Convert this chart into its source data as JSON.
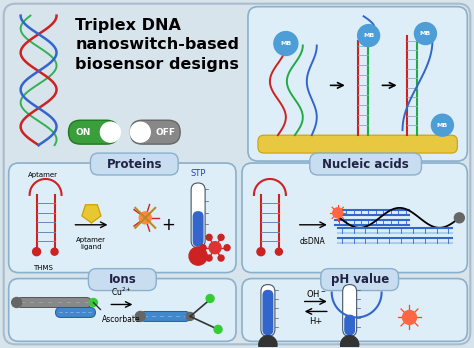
{
  "title": "Triplex DNA\nnanoswitch-based\nbiosensor designs",
  "bg_color": "#d8e4ec",
  "panel_bg": "#ddeef8",
  "panel_border": "#8ab0cc",
  "title_fontsize": 11.5,
  "sections": {
    "proteins": "Proteins",
    "nucleic": "Nucleic acids",
    "ions": "Ions",
    "ph": "pH value"
  },
  "on_color": "#3a9e3a",
  "off_color": "#888888",
  "mb_color": "#4d9dd6",
  "red_dot": "#cc2222",
  "green_dot": "#33cc33",
  "gray_dot": "#555555",
  "blue_strand": "#3366cc",
  "red_strand": "#cc2222",
  "green_strand": "#22aa44",
  "gold_color": "#e8c840",
  "label_color": "#222244"
}
